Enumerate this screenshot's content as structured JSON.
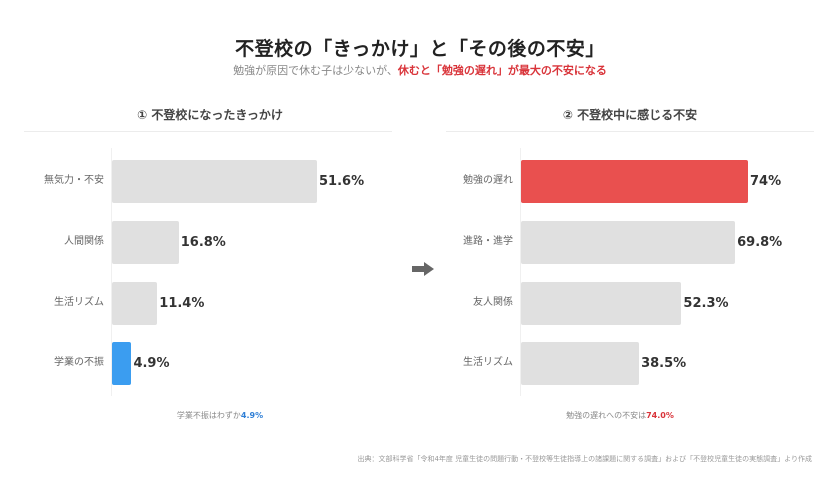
{
  "header": {
    "title": "不登校の「きっかけ」と「その後の不安」",
    "subtitle_plain": "勉強が原因で休む子は少ないが、",
    "subtitle_highlight": "休むと「勉強の遅れ」が最大の不安になる"
  },
  "left_panel": {
    "heading": "① 不登校になったきっかけ",
    "note_text": "学業不振はわずか",
    "note_value": "4.9%"
  },
  "right_panel": {
    "heading": "② 不登校中に感じる不安",
    "note_text": "勉強の遅れへの不安は",
    "note_value": "74.0%"
  },
  "arrow_icon": "right-arrow-icon",
  "source": "出典：文部科学省「令和4年度 児童生徒の問題行動・不登校等生徒指導上の諸課題に関する調査」および「不登校児童生徒の実態調査」より作成",
  "colors": {
    "bar_default": "#e0e0e0",
    "highlight_red": "#e9504f",
    "highlight_blue": "#3b9df0",
    "accent_text_red": "#d9343a"
  },
  "chart_data": [
    {
      "type": "bar",
      "orientation": "horizontal",
      "title": "① 不登校になったきっかけ",
      "categories": [
        "無気力・不安",
        "人間関係",
        "生活リズム",
        "学業の不振"
      ],
      "values": [
        51.6,
        16.8,
        11.4,
        4.9
      ],
      "value_labels": [
        "51.6%",
        "16.8%",
        "11.4%",
        "4.9%"
      ],
      "highlight": {
        "category": "学業の不振",
        "color": "#3b9df0"
      },
      "unit": "%",
      "grid": false,
      "annotation": "学業不振はわずか4.9%"
    },
    {
      "type": "bar",
      "orientation": "horizontal",
      "title": "② 不登校中に感じる不安",
      "categories": [
        "勉強の遅れ",
        "進路・進学",
        "友人関係",
        "生活リズム"
      ],
      "values": [
        74.0,
        69.8,
        52.3,
        38.5
      ],
      "value_labels": [
        "74%",
        "69.8%",
        "52.3%",
        "38.5%"
      ],
      "highlight": {
        "category": "勉強の遅れ",
        "color": "#e9504f"
      },
      "unit": "%",
      "grid": false,
      "annotation": "勉強の遅れへの不安は74.0%"
    }
  ]
}
